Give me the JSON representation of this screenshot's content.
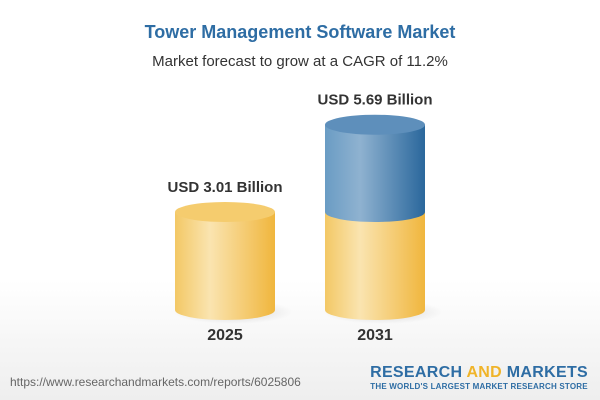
{
  "chart_data": {
    "type": "bar",
    "title": "Tower Management Software Market",
    "subtitle": "Market forecast to grow at a CAGR of 11.2%",
    "categories": [
      "2025",
      "2031"
    ],
    "values": [
      3.01,
      5.69
    ],
    "data_labels": [
      "USD 3.01 Billion",
      "USD 5.69 Billion"
    ],
    "unit": "USD Billion",
    "colors": {
      "base": "#f2c14e",
      "growth": "#3e7aad"
    }
  },
  "footer": {
    "url": "https://www.researchandmarkets.com/reports/6025806",
    "logo_main_a": "RESEARCH ",
    "logo_main_b": "AND",
    "logo_main_c": " MARKETS",
    "logo_tagline": "THE WORLD'S LARGEST MARKET RESEARCH STORE"
  }
}
